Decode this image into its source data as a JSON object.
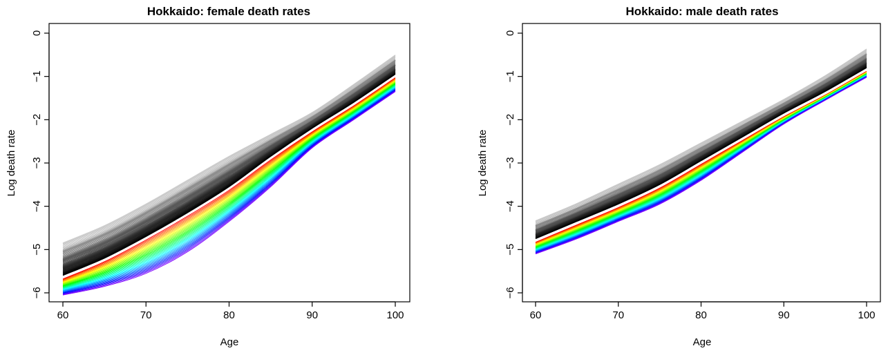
{
  "chart_data": [
    {
      "type": "line",
      "title": "Hokkaido: female death rates",
      "xlabel": "Age",
      "ylabel": "Log death rate",
      "xlim": [
        60,
        100
      ],
      "ylim": [
        -6,
        0
      ],
      "xticks": [
        60,
        70,
        80,
        90,
        100
      ],
      "yticks": [
        -6,
        -5,
        -4,
        -3,
        -2,
        -1,
        0
      ],
      "grid": false,
      "legend": "none",
      "series_description": "Many smoothed curves (one per year); earliest years in light grey through black, latest years in rainbow colors from red to violet.",
      "ages": [
        60,
        65,
        70,
        75,
        80,
        85,
        90,
        95,
        100
      ],
      "earliest_curve": [
        -4.85,
        -4.45,
        -3.95,
        -3.4,
        -2.85,
        -2.35,
        -1.85,
        -1.2,
        -0.52
      ],
      "darkest_curve": [
        -5.6,
        -5.2,
        -4.7,
        -4.15,
        -3.55,
        -2.85,
        -2.2,
        -1.6,
        -0.95
      ],
      "latest_curve": [
        -6.05,
        -5.85,
        -5.55,
        -5.05,
        -4.35,
        -3.55,
        -2.65,
        -2.0,
        -1.35
      ],
      "grey_curve_count": 60,
      "color_curve_count": 28,
      "color_start": "#ff0000",
      "color_end": "#8000ff"
    },
    {
      "type": "line",
      "title": "Hokkaido: male death rates",
      "xlabel": "Age",
      "ylabel": "Log death rate",
      "xlim": [
        60,
        100
      ],
      "ylim": [
        -6,
        0
      ],
      "xticks": [
        60,
        70,
        80,
        90,
        100
      ],
      "yticks": [
        -6,
        -5,
        -4,
        -3,
        -2,
        -1,
        0
      ],
      "grid": false,
      "legend": "none",
      "series_description": "Many smoothed curves (one per year); earliest years in light grey through black, latest years in rainbow colors from red to violet.",
      "ages": [
        60,
        65,
        70,
        75,
        80,
        85,
        90,
        95,
        100
      ],
      "earliest_curve": [
        -4.35,
        -3.95,
        -3.5,
        -3.05,
        -2.55,
        -2.05,
        -1.55,
        -1.0,
        -0.38
      ],
      "darkest_curve": [
        -4.75,
        -4.35,
        -3.95,
        -3.5,
        -2.95,
        -2.4,
        -1.85,
        -1.35,
        -0.8
      ],
      "latest_curve": [
        -5.1,
        -4.75,
        -4.35,
        -3.95,
        -3.4,
        -2.75,
        -2.1,
        -1.55,
        -1.02
      ],
      "grey_curve_count": 60,
      "color_curve_count": 24,
      "color_start": "#ff0000",
      "color_end": "#8000ff"
    }
  ]
}
